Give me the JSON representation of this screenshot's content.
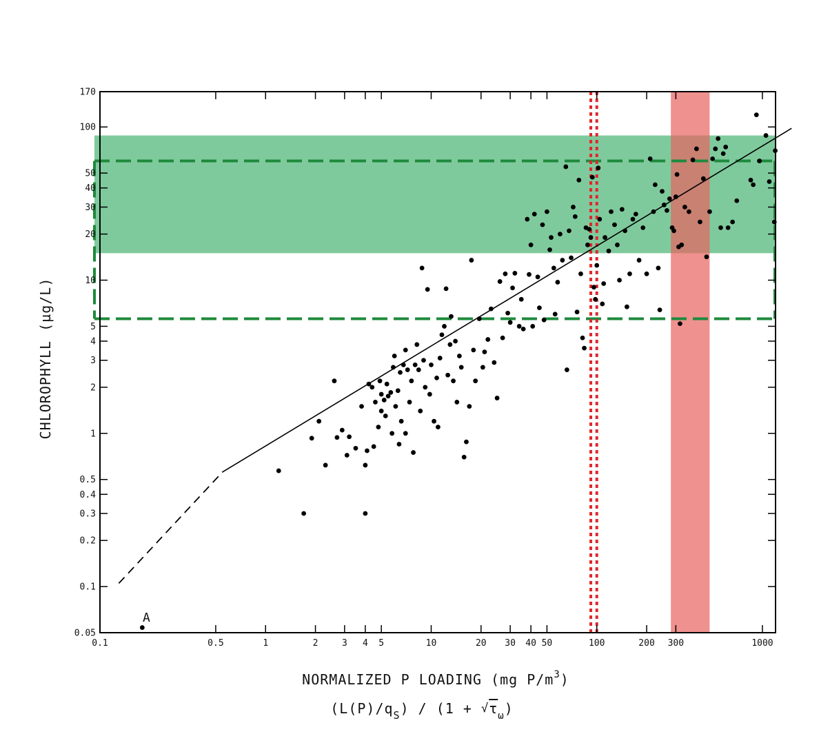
{
  "chart_data": {
    "type": "scatter",
    "x_scale": "log",
    "y_scale": "log",
    "xlim": [
      0.1,
      1200
    ],
    "ylim": [
      0.05,
      170
    ],
    "xlabel": "NORMALIZED P LOADING  (mg P/m",
    "xlabel_sup": "3",
    "xlabel_close": ")",
    "xlabel2_parts": [
      "(L(P)/q",
      "S",
      ") / (1 + ",
      "√",
      "τ",
      "ω",
      ")"
    ],
    "ylabel": "CHLOROPHYLL  (µg/L)",
    "x_ticks": [
      {
        "v": 0.1,
        "label": "0.1"
      },
      {
        "v": 0.5,
        "label": "0.5"
      },
      {
        "v": 1,
        "label": "1"
      },
      {
        "v": 2,
        "label": "2"
      },
      {
        "v": 3,
        "label": "3"
      },
      {
        "v": 4,
        "label": "4"
      },
      {
        "v": 5,
        "label": "5"
      },
      {
        "v": 10,
        "label": "10"
      },
      {
        "v": 20,
        "label": "20"
      },
      {
        "v": 30,
        "label": "30"
      },
      {
        "v": 40,
        "label": "40"
      },
      {
        "v": 50,
        "label": "50"
      },
      {
        "v": 100,
        "label": "100"
      },
      {
        "v": 200,
        "label": "200"
      },
      {
        "v": 300,
        "label": "300"
      },
      {
        "v": 1000,
        "label": "1000"
      }
    ],
    "y_ticks": [
      {
        "v": 0.05,
        "label": "0.05"
      },
      {
        "v": 0.1,
        "label": "0.1"
      },
      {
        "v": 0.2,
        "label": "0.2"
      },
      {
        "v": 0.3,
        "label": "0.3"
      },
      {
        "v": 0.4,
        "label": "0.4"
      },
      {
        "v": 0.5,
        "label": "0.5"
      },
      {
        "v": 1,
        "label": "1"
      },
      {
        "v": 2,
        "label": "2"
      },
      {
        "v": 3,
        "label": "3"
      },
      {
        "v": 4,
        "label": "4"
      },
      {
        "v": 5,
        "label": "5"
      },
      {
        "v": 10,
        "label": "10"
      },
      {
        "v": 20,
        "label": "20"
      },
      {
        "v": 30,
        "label": "30"
      },
      {
        "v": 40,
        "label": "40"
      },
      {
        "v": 50,
        "label": "50"
      },
      {
        "v": 100,
        "label": "100"
      },
      {
        "v": 170,
        "label": "170"
      }
    ],
    "green_band": {
      "y_from": 15,
      "y_to": 88,
      "color": "#4db677"
    },
    "green_dashed_box": {
      "y_low": 5.6,
      "y_high": 60,
      "x_right": 1200,
      "color": "#1e8a3c"
    },
    "red_band": {
      "x_from": 280,
      "x_to": 480,
      "color": "#e8625f"
    },
    "red_dotted_lines": {
      "x": [
        92,
        100
      ],
      "color": "#e0282a"
    },
    "regression_line": {
      "solid": [
        [
          0.55,
          0.56
        ],
        [
          1500,
          98
        ]
      ],
      "dashed": [
        [
          0.13,
          0.105
        ],
        [
          0.55,
          0.56
        ]
      ]
    },
    "annotation": {
      "text": "A",
      "x": 0.19,
      "y": 0.054
    },
    "points": [
      [
        0.18,
        0.054
      ],
      [
        1.2,
        0.57
      ],
      [
        1.7,
        0.3
      ],
      [
        1.9,
        0.93
      ],
      [
        2.1,
        1.2
      ],
      [
        2.3,
        0.62
      ],
      [
        2.6,
        2.2
      ],
      [
        2.7,
        0.94
      ],
      [
        2.9,
        1.05
      ],
      [
        3.1,
        0.72
      ],
      [
        3.2,
        0.95
      ],
      [
        3.5,
        0.8
      ],
      [
        3.8,
        1.5
      ],
      [
        4,
        0.62
      ],
      [
        4,
        0.3
      ],
      [
        4.1,
        0.77
      ],
      [
        4.2,
        2.1
      ],
      [
        4.4,
        2.0
      ],
      [
        4.5,
        0.82
      ],
      [
        4.6,
        1.6
      ],
      [
        4.8,
        1.1
      ],
      [
        4.9,
        2.2
      ],
      [
        5.0,
        1.8
      ],
      [
        5.0,
        1.4
      ],
      [
        5.2,
        1.65
      ],
      [
        5.3,
        1.3
      ],
      [
        5.4,
        2.1
      ],
      [
        5.5,
        1.75
      ],
      [
        5.7,
        1.85
      ],
      [
        5.8,
        1.0
      ],
      [
        5.9,
        2.7
      ],
      [
        6.0,
        3.2
      ],
      [
        6.1,
        1.5
      ],
      [
        6.3,
        1.9
      ],
      [
        6.4,
        0.85
      ],
      [
        6.5,
        2.5
      ],
      [
        6.6,
        1.2
      ],
      [
        6.8,
        2.8
      ],
      [
        7.0,
        1.0
      ],
      [
        7.0,
        3.5
      ],
      [
        7.2,
        2.6
      ],
      [
        7.4,
        1.6
      ],
      [
        7.6,
        2.2
      ],
      [
        7.8,
        0.75
      ],
      [
        8.0,
        2.8
      ],
      [
        8.2,
        3.8
      ],
      [
        8.4,
        2.6
      ],
      [
        8.6,
        1.4
      ],
      [
        8.8,
        12.0
      ],
      [
        9.0,
        3.0
      ],
      [
        9.2,
        2.0
      ],
      [
        9.5,
        8.7
      ],
      [
        9.8,
        1.8
      ],
      [
        10,
        2.8
      ],
      [
        10.4,
        1.2
      ],
      [
        10.8,
        2.3
      ],
      [
        11,
        1.1
      ],
      [
        11.3,
        3.1
      ],
      [
        11.6,
        4.4
      ],
      [
        12,
        5.0
      ],
      [
        12.3,
        8.8
      ],
      [
        12.6,
        2.4
      ],
      [
        13,
        3.8
      ],
      [
        13.2,
        5.8
      ],
      [
        13.6,
        2.2
      ],
      [
        14,
        4.0
      ],
      [
        14.3,
        1.6
      ],
      [
        14.8,
        3.2
      ],
      [
        15.2,
        2.7
      ],
      [
        15.8,
        0.7
      ],
      [
        16.3,
        0.88
      ],
      [
        17,
        1.5
      ],
      [
        17.5,
        13.5
      ],
      [
        18,
        3.5
      ],
      [
        18.5,
        2.2
      ],
      [
        19.5,
        5.6
      ],
      [
        20.5,
        2.7
      ],
      [
        21,
        3.4
      ],
      [
        22,
        4.1
      ],
      [
        23,
        6.5
      ],
      [
        24,
        2.9
      ],
      [
        25,
        1.7
      ],
      [
        26,
        9.8
      ],
      [
        27,
        4.2
      ],
      [
        28,
        11.0
      ],
      [
        29,
        6.1
      ],
      [
        30,
        5.3
      ],
      [
        31,
        8.9
      ],
      [
        32,
        11.1
      ],
      [
        34,
        5.0
      ],
      [
        35,
        7.5
      ],
      [
        36,
        4.8
      ],
      [
        38,
        25.0
      ],
      [
        39,
        10.9
      ],
      [
        40,
        17.0
      ],
      [
        41,
        5.0
      ],
      [
        42,
        27.0
      ],
      [
        44,
        10.5
      ],
      [
        45,
        6.6
      ],
      [
        47,
        23.0
      ],
      [
        48,
        5.5
      ],
      [
        50,
        28.0
      ],
      [
        52,
        15.8
      ],
      [
        53,
        19.0
      ],
      [
        55,
        12.0
      ],
      [
        56,
        6.0
      ],
      [
        58,
        9.7
      ],
      [
        60,
        20.0
      ],
      [
        62,
        13.5
      ],
      [
        65,
        55.0
      ],
      [
        66,
        2.6
      ],
      [
        68,
        21.0
      ],
      [
        70,
        14.0
      ],
      [
        72,
        30.0
      ],
      [
        74,
        26.0
      ],
      [
        76,
        6.2
      ],
      [
        78,
        45.0
      ],
      [
        80,
        11.0
      ],
      [
        82,
        4.2
      ],
      [
        84,
        3.6
      ],
      [
        86,
        22.0
      ],
      [
        88,
        17.0
      ],
      [
        90,
        21.5
      ],
      [
        92,
        19.0
      ],
      [
        94,
        47.0
      ],
      [
        96,
        9.0
      ],
      [
        98,
        7.5
      ],
      [
        100,
        12.5
      ],
      [
        102,
        54.0
      ],
      [
        104,
        25.0
      ],
      [
        108,
        7.0
      ],
      [
        110,
        9.5
      ],
      [
        112,
        19.0
      ],
      [
        118,
        15.5
      ],
      [
        122,
        28.0
      ],
      [
        128,
        23.0
      ],
      [
        133,
        17.0
      ],
      [
        137,
        10.0
      ],
      [
        142,
        29.0
      ],
      [
        148,
        21.0
      ],
      [
        152,
        6.7
      ],
      [
        158,
        11.0
      ],
      [
        165,
        25.0
      ],
      [
        172,
        27.0
      ],
      [
        180,
        13.5
      ],
      [
        190,
        22.0
      ],
      [
        200,
        11.0
      ],
      [
        210,
        62.0
      ],
      [
        220,
        28.0
      ],
      [
        225,
        42.0
      ],
      [
        235,
        12.0
      ],
      [
        240,
        6.4
      ],
      [
        248,
        38.0
      ],
      [
        255,
        31.0
      ],
      [
        265,
        28.5
      ],
      [
        275,
        34.0
      ],
      [
        285,
        22.0
      ],
      [
        292,
        21.0
      ],
      [
        300,
        35.0
      ],
      [
        305,
        49.0
      ],
      [
        312,
        16.5
      ],
      [
        318,
        5.2
      ],
      [
        325,
        17.0
      ],
      [
        340,
        30.0
      ],
      [
        360,
        28.0
      ],
      [
        380,
        61.0
      ],
      [
        400,
        72.0
      ],
      [
        420,
        24.0
      ],
      [
        440,
        46.0
      ],
      [
        460,
        14.2
      ],
      [
        480,
        28.0
      ],
      [
        500,
        62.0
      ],
      [
        520,
        72.0
      ],
      [
        540,
        84.0
      ],
      [
        560,
        22.0
      ],
      [
        580,
        67.0
      ],
      [
        600,
        74.0
      ],
      [
        620,
        22.0
      ],
      [
        660,
        24.0
      ],
      [
        700,
        33.0
      ],
      [
        850,
        45.0
      ],
      [
        880,
        42.0
      ],
      [
        920,
        120.0
      ],
      [
        960,
        60.0
      ],
      [
        1050,
        88.0
      ],
      [
        1100,
        44.0
      ],
      [
        1180,
        24.0
      ],
      [
        1195,
        70.0
      ]
    ]
  }
}
